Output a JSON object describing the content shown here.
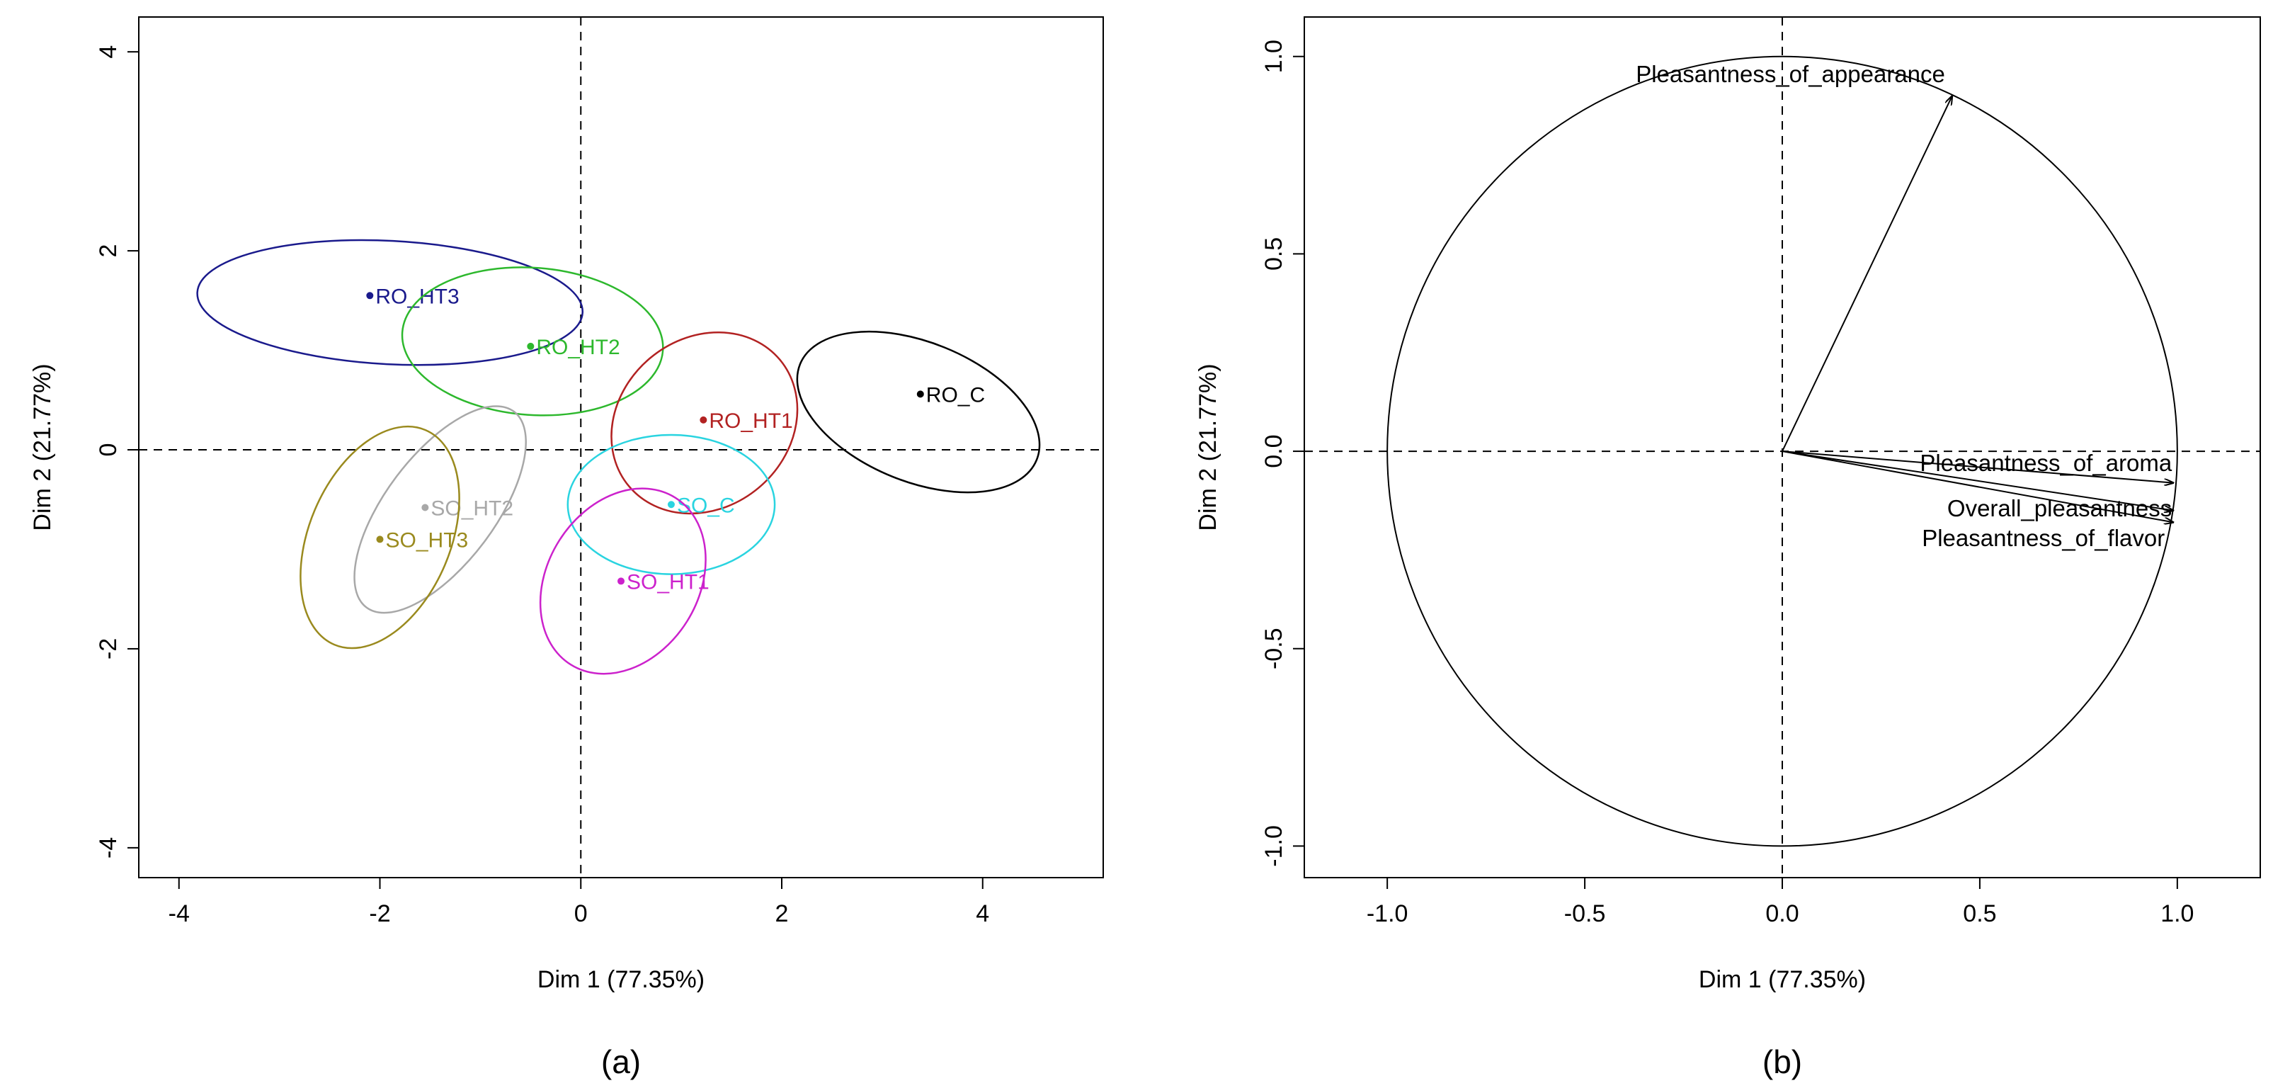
{
  "chart_data": [
    {
      "type": "scatter",
      "panel": "(a)",
      "caption": "(a)",
      "xlabel": "Dim 1 (77.35%)",
      "ylabel": "Dim 2 (21.77%)",
      "xlim": [
        -4.4,
        5.2
      ],
      "ylim": [
        -4.3,
        4.35
      ],
      "xticks": [
        -4,
        -2,
        0,
        2,
        4
      ],
      "yticks": [
        -4,
        -2,
        0,
        2,
        4
      ],
      "points": [
        {
          "name": "RO_HT3",
          "x": -2.1,
          "y": 1.55,
          "color": "#1a1a8c",
          "ellipse": {
            "cx": -1.9,
            "cy": 1.48,
            "rx": 1.92,
            "ry": 0.62,
            "angle": -3
          }
        },
        {
          "name": "RO_HT2",
          "x": -0.5,
          "y": 1.04,
          "color": "#2db82d",
          "ellipse": {
            "cx": -0.48,
            "cy": 1.09,
            "rx": 1.3,
            "ry": 0.74,
            "angle": -4
          }
        },
        {
          "name": "RO_HT1",
          "x": 1.22,
          "y": 0.3,
          "color": "#b22222",
          "ellipse": {
            "cx": 1.23,
            "cy": 0.27,
            "rx": 0.98,
            "ry": 0.85,
            "angle": 40
          }
        },
        {
          "name": "RO_C",
          "x": 3.38,
          "y": 0.56,
          "color": "#000000",
          "ellipse": {
            "cx": 3.36,
            "cy": 0.38,
            "rx": 1.27,
            "ry": 0.7,
            "angle": -22
          }
        },
        {
          "name": "SO_HT2",
          "x": -1.55,
          "y": -0.58,
          "color": "#a8a8a8",
          "ellipse": {
            "cx": -1.4,
            "cy": -0.6,
            "rx": 1.22,
            "ry": 0.55,
            "angle": 53
          }
        },
        {
          "name": "SO_HT3",
          "x": -2.0,
          "y": -0.9,
          "color": "#9a8a1e",
          "ellipse": {
            "cx": -2.0,
            "cy": -0.88,
            "rx": 1.16,
            "ry": 0.71,
            "angle": 67
          }
        },
        {
          "name": "SO_C",
          "x": 0.9,
          "y": -0.55,
          "color": "#2ad4e0",
          "ellipse": {
            "cx": 0.9,
            "cy": -0.55,
            "rx": 1.03,
            "ry": 0.7,
            "angle": 0
          }
        },
        {
          "name": "SO_HT1",
          "x": 0.4,
          "y": -1.32,
          "color": "#cc22cc",
          "ellipse": {
            "cx": 0.42,
            "cy": -1.32,
            "rx": 0.98,
            "ry": 0.76,
            "angle": 58
          }
        }
      ]
    },
    {
      "type": "variables-factor-map",
      "panel": "(b)",
      "caption": "(b)",
      "xlabel": "Dim 1 (77.35%)",
      "ylabel": "Dim 2 (21.77%)",
      "xlim": [
        -1.21,
        1.21
      ],
      "ylim": [
        -1.08,
        1.1
      ],
      "xticks": [
        "-1.0",
        "-0.5",
        "0.0",
        "0.5",
        "1.0"
      ],
      "yticks": [
        "-1.0",
        "-0.5",
        "0.0",
        "0.5",
        "1.0"
      ],
      "vectors": [
        {
          "name": "Pleasantness_of_appearance",
          "x": 0.43,
          "y": 0.9
        },
        {
          "name": "Pleasantness_of_aroma",
          "x": 0.99,
          "y": -0.08
        },
        {
          "name": "Overall_pleasantness",
          "x": 0.99,
          "y": -0.15
        },
        {
          "name": "Pleasantness_of_flavor",
          "x": 0.99,
          "y": -0.18
        }
      ]
    }
  ]
}
